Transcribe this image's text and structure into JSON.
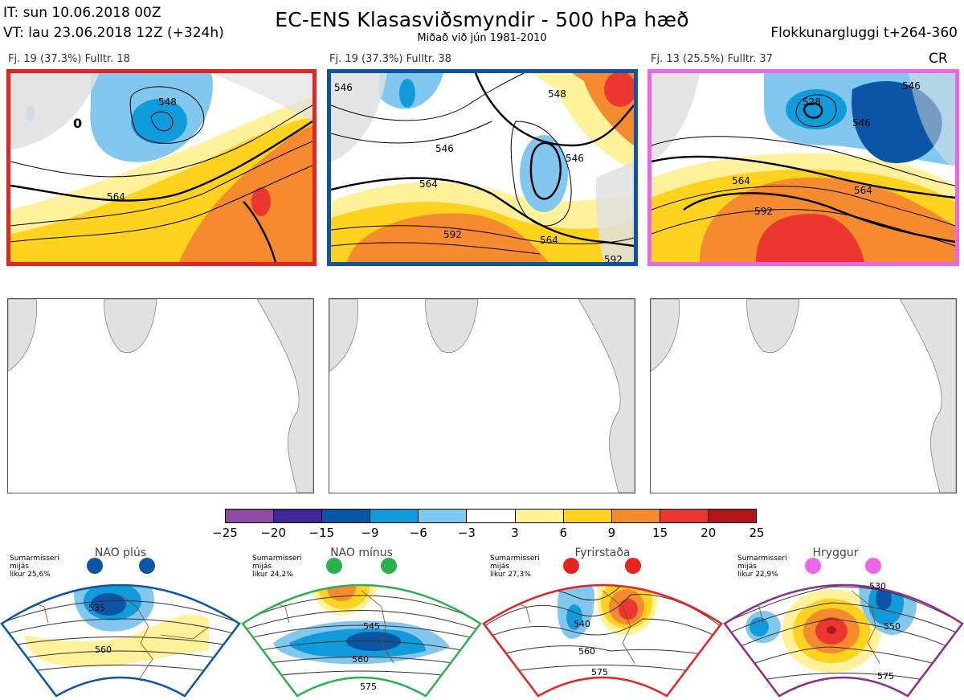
{
  "header": {
    "it": "IT: sun 10.06.2018 00Z",
    "vt": "VT: lau 23.06.2018 12Z  (+324h)",
    "title": "EC-ENS Klasasviðsmyndir - 500 hPa hæð",
    "subtitle": "Miðað við jún 1981-2010",
    "window": "Flokkunargluggi t+264-360"
  },
  "clusters": [
    {
      "label": "Fj. 19 (37.3%)   Fulltr. 18",
      "border": "#e8221f",
      "contours": [
        "548",
        "564",
        "0"
      ]
    },
    {
      "label": "Fj. 19 (37.3%)   Fulltr. 38",
      "border": "#0a55a5",
      "contours": [
        "546",
        "548",
        "546",
        "564",
        "546",
        "592",
        "564",
        "592"
      ]
    },
    {
      "label": "Fj. 13 (25.5%)   Fulltr. 37",
      "border": "#ee66e8",
      "contours": [
        "528",
        "546",
        "564",
        "564",
        "592",
        "546"
      ],
      "badge": "CR"
    }
  ],
  "colorbar": {
    "colors": [
      "#8e4a9e",
      "#41269b",
      "#0a55a5",
      "#109bdb",
      "#82c8ee",
      "#ffffff",
      "#fff29a",
      "#ffd21e",
      "#f58a2e",
      "#ec3631",
      "#b3141a"
    ],
    "ticks": [
      "−25",
      "−20",
      "−15",
      "−9",
      "−6",
      "−3",
      "3",
      "6",
      "9",
      "15",
      "20",
      "25"
    ]
  },
  "regimes": [
    {
      "name": "NAO plús",
      "text": "Sumarmisseri\nmijás\nlikur 25,6%",
      "color": "#0a55a5",
      "contours": [
        "535",
        "560"
      ]
    },
    {
      "name": "NAO mínus",
      "text": "Sumarmisseri\nmijás\nlikur 24,2%",
      "color": "#2ab24a",
      "contours": [
        "545",
        "560",
        "575"
      ]
    },
    {
      "name": "Fyrirstaða",
      "text": "Sumarmisseri\nmijás\nlikur 27,3%",
      "color": "#e8221f",
      "contours": [
        "540",
        "560",
        "575"
      ]
    },
    {
      "name": "Hryggur",
      "text": "Sumarmisseri\nmijás\nlikur 22,9%",
      "color": "#8c2c8c",
      "dot": "#ee66e8",
      "contours": [
        "530",
        "550",
        "575"
      ]
    }
  ]
}
